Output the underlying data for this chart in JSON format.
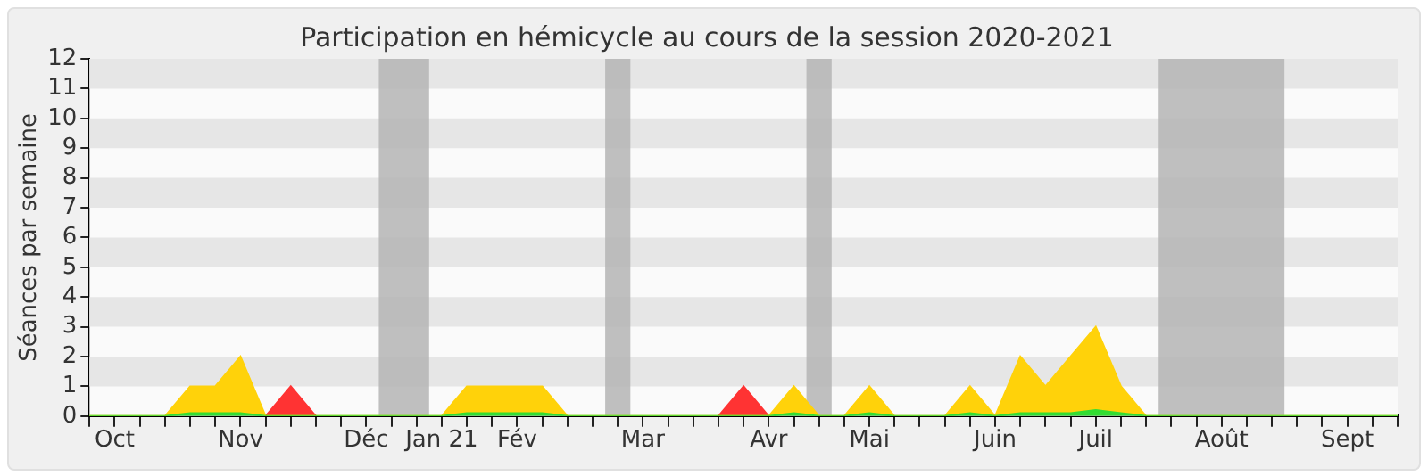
{
  "chart_data": {
    "type": "area",
    "title": "Participation en hémicycle au cours de la session 2020-2021",
    "ylabel": "Séances par semaine",
    "stacked": true,
    "categories": [
      null,
      "Oct",
      null,
      null,
      null,
      null,
      "Nov",
      null,
      null,
      null,
      null,
      "Déc",
      null,
      null,
      "Jan 21",
      null,
      null,
      "Fév",
      null,
      null,
      null,
      null,
      "Mar",
      null,
      null,
      null,
      null,
      "Avr",
      null,
      null,
      null,
      "Mai",
      null,
      null,
      null,
      null,
      "Juin",
      null,
      null,
      null,
      "Juil",
      null,
      null,
      null,
      null,
      "Août",
      null,
      null,
      null,
      null,
      "Sept",
      null,
      null
    ],
    "series": [
      {
        "color": "#33dd33",
        "values": [
          0,
          0,
          0,
          0,
          0.1,
          0.1,
          0.1,
          0,
          0,
          0,
          0,
          0,
          0,
          0,
          0,
          0.1,
          0.1,
          0.1,
          0.1,
          0,
          0,
          0,
          0,
          0,
          0,
          0,
          0,
          0,
          0.1,
          0,
          0,
          0.1,
          0,
          0,
          0,
          0.1,
          0,
          0.1,
          0.1,
          0.1,
          0.2,
          0.1,
          0,
          0,
          0,
          0,
          0,
          0,
          0,
          0,
          0,
          0,
          0
        ]
      },
      {
        "color": "#ffd20a",
        "values": [
          0,
          0,
          0,
          0,
          0.9,
          0.9,
          1.9,
          0,
          0,
          0,
          0,
          0,
          0,
          0,
          0,
          0.9,
          0.9,
          0.9,
          0.9,
          0,
          0,
          0,
          0,
          0,
          0,
          0,
          0,
          0,
          0.9,
          0,
          0,
          0.9,
          0,
          0,
          0,
          0.9,
          0,
          1.9,
          0.9,
          1.9,
          2.8,
          0.9,
          0,
          0,
          0,
          0,
          0,
          0,
          0,
          0,
          0,
          0,
          0
        ]
      },
      {
        "color": "#ff3333",
        "values": [
          null,
          null,
          null,
          null,
          null,
          null,
          null,
          0,
          1,
          0,
          null,
          null,
          null,
          null,
          null,
          null,
          null,
          null,
          null,
          null,
          null,
          null,
          null,
          null,
          null,
          0,
          1,
          0,
          null,
          null,
          null,
          null,
          null,
          null,
          null,
          null,
          null,
          null,
          null,
          null,
          null,
          null,
          null,
          null,
          null,
          null,
          null,
          null,
          null,
          null,
          null,
          null,
          null
        ]
      }
    ],
    "ylim": [
      0,
      12
    ],
    "yticks": [
      0,
      1,
      2,
      3,
      4,
      5,
      6,
      7,
      8,
      9,
      10,
      11,
      12
    ],
    "legend": false
  }
}
